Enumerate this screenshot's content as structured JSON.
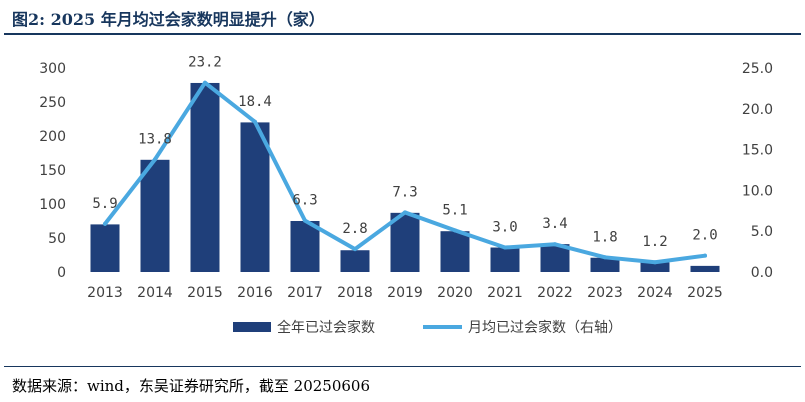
{
  "title": "图2:  2025 年月均过会家数明显提升（家）",
  "source": "数据来源：wind，东吴证券研究所，截至 20250606",
  "colors": {
    "bar": "#1f3f7a",
    "line": "#4aa8e0",
    "rule": "#17365d"
  },
  "chart_data": {
    "type": "bar",
    "categories": [
      "2013",
      "2014",
      "2015",
      "2016",
      "2017",
      "2018",
      "2019",
      "2020",
      "2021",
      "2022",
      "2023",
      "2024",
      "2025"
    ],
    "series": [
      {
        "name": "全年已过会家数",
        "type": "bar",
        "axis": "left",
        "values": [
          70,
          165,
          278,
          220,
          75,
          32,
          87,
          60,
          36,
          41,
          21,
          14,
          9
        ]
      },
      {
        "name": "月均已过会家数（右轴）",
        "type": "line",
        "axis": "right",
        "values": [
          5.9,
          13.8,
          23.2,
          18.4,
          6.3,
          2.8,
          7.3,
          5.1,
          3.0,
          3.4,
          1.8,
          1.2,
          2.0
        ],
        "labels": [
          "5.9",
          "13.8",
          "23.2",
          "18.4",
          "6.3",
          "2.8",
          "7.3",
          "5.1",
          "3.0",
          "3.4",
          "1.8",
          "1.2",
          "2.0"
        ]
      }
    ],
    "y_left": {
      "ylim": [
        0,
        300
      ],
      "ticks": [
        "0",
        "50",
        "100",
        "150",
        "200",
        "250",
        "300"
      ]
    },
    "y_right": {
      "ylim": [
        0,
        25
      ],
      "ticks": [
        "0.0",
        "5.0",
        "10.0",
        "15.0",
        "20.0",
        "25.0"
      ]
    },
    "grid": false,
    "legend_position": "bottom"
  }
}
